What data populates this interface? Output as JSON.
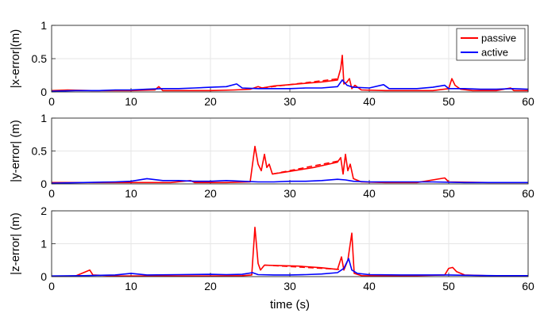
{
  "colors": {
    "passive": "#ff0000",
    "active": "#0000ff",
    "grid": "#e6e6e6",
    "axis": "#262626"
  },
  "chart_data": [
    {
      "type": "line",
      "ylabel": "|x-error|(m)",
      "xlabel": "",
      "xlim": [
        0,
        60
      ],
      "ylim": [
        0,
        1
      ],
      "xticks": [
        "0",
        "10",
        "20",
        "30",
        "40",
        "50",
        "60"
      ],
      "yticks": [
        "0",
        "0.5",
        "1"
      ],
      "grid": true,
      "legend": {
        "position": "top-right",
        "entries": [
          "passive",
          "active"
        ]
      },
      "series": [
        {
          "name": "passive",
          "color": "#ff0000",
          "points": [
            [
              0,
              0.02
            ],
            [
              2,
              0.03
            ],
            [
              5,
              0.02
            ],
            [
              8,
              0.02
            ],
            [
              10,
              0.02
            ],
            [
              13,
              0.03
            ],
            [
              13.5,
              0.08
            ],
            [
              14,
              0.02
            ],
            [
              17,
              0.02
            ],
            [
              20,
              0.02
            ],
            [
              23,
              0.03
            ],
            [
              25,
              0.04
            ],
            [
              26,
              0.08
            ],
            [
              26.5,
              0.06
            ],
            [
              28,
              0.09
            ],
            [
              30,
              0.11
            ],
            [
              32,
              0.13
            ],
            [
              34,
              0.15
            ],
            [
              36,
              0.18
            ],
            [
              36.4,
              0.35
            ],
            [
              36.6,
              0.55
            ],
            [
              36.8,
              0.12
            ],
            [
              37.2,
              0.15
            ],
            [
              37.5,
              0.2
            ],
            [
              37.8,
              0.05
            ],
            [
              38.2,
              0.1
            ],
            [
              39,
              0.03
            ],
            [
              42,
              0.02
            ],
            [
              45,
              0.02
            ],
            [
              48,
              0.02
            ],
            [
              50,
              0.05
            ],
            [
              50.4,
              0.2
            ],
            [
              50.8,
              0.1
            ],
            [
              51.5,
              0.04
            ],
            [
              53,
              0.02
            ],
            [
              56,
              0.02
            ],
            [
              57.8,
              0.06
            ],
            [
              58.2,
              0.02
            ],
            [
              60,
              0.02
            ]
          ],
          "dashed_segment": [
            [
              26.5,
              0.06
            ],
            [
              36.2,
              0.2
            ]
          ]
        },
        {
          "name": "active",
          "color": "#0000ff",
          "points": [
            [
              0,
              0.01
            ],
            [
              3,
              0.02
            ],
            [
              6,
              0.02
            ],
            [
              8,
              0.03
            ],
            [
              10,
              0.03
            ],
            [
              12,
              0.04
            ],
            [
              14,
              0.05
            ],
            [
              16,
              0.05
            ],
            [
              18,
              0.06
            ],
            [
              20,
              0.07
            ],
            [
              22,
              0.08
            ],
            [
              23.3,
              0.12
            ],
            [
              24,
              0.06
            ],
            [
              26,
              0.05
            ],
            [
              28,
              0.05
            ],
            [
              30,
              0.05
            ],
            [
              32,
              0.06
            ],
            [
              34,
              0.06
            ],
            [
              36,
              0.08
            ],
            [
              36.6,
              0.18
            ],
            [
              37.2,
              0.1
            ],
            [
              38,
              0.07
            ],
            [
              40,
              0.06
            ],
            [
              41.8,
              0.11
            ],
            [
              42.5,
              0.05
            ],
            [
              44,
              0.05
            ],
            [
              46,
              0.05
            ],
            [
              48,
              0.07
            ],
            [
              49.5,
              0.1
            ],
            [
              50,
              0.05
            ],
            [
              52,
              0.05
            ],
            [
              54,
              0.04
            ],
            [
              56,
              0.04
            ],
            [
              58,
              0.05
            ],
            [
              60,
              0.04
            ]
          ]
        }
      ]
    },
    {
      "type": "line",
      "ylabel": "|y-error| (m)",
      "xlabel": "",
      "xlim": [
        0,
        60
      ],
      "ylim": [
        0,
        1
      ],
      "xticks": [
        "0",
        "10",
        "20",
        "30",
        "40",
        "50",
        "60"
      ],
      "yticks": [
        "0",
        "0.5",
        "1"
      ],
      "grid": true,
      "series": [
        {
          "name": "passive",
          "color": "#ff0000",
          "points": [
            [
              0,
              0.02
            ],
            [
              5,
              0.02
            ],
            [
              10,
              0.02
            ],
            [
              15,
              0.02
            ],
            [
              17.5,
              0.05
            ],
            [
              18,
              0.02
            ],
            [
              22,
              0.02
            ],
            [
              25,
              0.03
            ],
            [
              25.6,
              0.57
            ],
            [
              26,
              0.3
            ],
            [
              26.4,
              0.2
            ],
            [
              26.8,
              0.45
            ],
            [
              27.1,
              0.25
            ],
            [
              27.4,
              0.3
            ],
            [
              27.8,
              0.15
            ],
            [
              30,
              0.19
            ],
            [
              33,
              0.25
            ],
            [
              36,
              0.33
            ],
            [
              36.4,
              0.4
            ],
            [
              36.7,
              0.15
            ],
            [
              37,
              0.45
            ],
            [
              37.3,
              0.2
            ],
            [
              37.6,
              0.3
            ],
            [
              38,
              0.08
            ],
            [
              39,
              0.03
            ],
            [
              42,
              0.02
            ],
            [
              46,
              0.02
            ],
            [
              49.5,
              0.09
            ],
            [
              50,
              0.03
            ],
            [
              55,
              0.02
            ],
            [
              60,
              0.02
            ]
          ],
          "dashed_segment": [
            [
              27.8,
              0.15
            ],
            [
              36.2,
              0.35
            ]
          ]
        },
        {
          "name": "active",
          "color": "#0000ff",
          "points": [
            [
              0,
              0.01
            ],
            [
              4,
              0.02
            ],
            [
              8,
              0.03
            ],
            [
              10,
              0.04
            ],
            [
              12,
              0.08
            ],
            [
              14,
              0.05
            ],
            [
              16,
              0.05
            ],
            [
              18,
              0.04
            ],
            [
              20,
              0.04
            ],
            [
              22,
              0.05
            ],
            [
              24,
              0.04
            ],
            [
              26,
              0.03
            ],
            [
              28,
              0.03
            ],
            [
              30,
              0.04
            ],
            [
              32,
              0.04
            ],
            [
              34,
              0.05
            ],
            [
              36,
              0.07
            ],
            [
              37,
              0.06
            ],
            [
              38,
              0.04
            ],
            [
              40,
              0.03
            ],
            [
              44,
              0.03
            ],
            [
              48,
              0.03
            ],
            [
              52,
              0.02
            ],
            [
              56,
              0.02
            ],
            [
              60,
              0.02
            ]
          ]
        }
      ]
    },
    {
      "type": "line",
      "ylabel": "|z-error| (m)",
      "xlabel": "time (s)",
      "xlim": [
        0,
        60
      ],
      "ylim": [
        0,
        2
      ],
      "xticks": [
        "0",
        "10",
        "20",
        "30",
        "40",
        "50",
        "60"
      ],
      "yticks": [
        "0",
        "1",
        "2"
      ],
      "grid": true,
      "series": [
        {
          "name": "passive",
          "color": "#ff0000",
          "points": [
            [
              0,
              0.01
            ],
            [
              3,
              0.02
            ],
            [
              4.8,
              0.2
            ],
            [
              5.2,
              0.05
            ],
            [
              8,
              0.02
            ],
            [
              12,
              0.02
            ],
            [
              16,
              0.02
            ],
            [
              20,
              0.02
            ],
            [
              24,
              0.03
            ],
            [
              25.2,
              0.05
            ],
            [
              25.6,
              1.5
            ],
            [
              26,
              0.4
            ],
            [
              26.3,
              0.2
            ],
            [
              26.8,
              0.35
            ],
            [
              28,
              0.34
            ],
            [
              31,
              0.32
            ],
            [
              34,
              0.27
            ],
            [
              36,
              0.22
            ],
            [
              36.5,
              0.6
            ],
            [
              36.8,
              0.2
            ],
            [
              37.3,
              0.5
            ],
            [
              37.8,
              1.32
            ],
            [
              38.1,
              0.1
            ],
            [
              39,
              0.03
            ],
            [
              44,
              0.02
            ],
            [
              49.5,
              0.05
            ],
            [
              50,
              0.25
            ],
            [
              50.5,
              0.28
            ],
            [
              51,
              0.15
            ],
            [
              52,
              0.05
            ],
            [
              56,
              0.02
            ],
            [
              60,
              0.02
            ]
          ],
          "dashed_segment": [
            [
              26.8,
              0.35
            ],
            [
              36.2,
              0.22
            ]
          ]
        },
        {
          "name": "active",
          "color": "#0000ff",
          "points": [
            [
              0,
              0.02
            ],
            [
              4,
              0.03
            ],
            [
              8,
              0.05
            ],
            [
              10,
              0.1
            ],
            [
              12,
              0.05
            ],
            [
              16,
              0.06
            ],
            [
              20,
              0.07
            ],
            [
              22,
              0.06
            ],
            [
              24,
              0.07
            ],
            [
              25.3,
              0.12
            ],
            [
              26,
              0.06
            ],
            [
              28,
              0.05
            ],
            [
              30,
              0.05
            ],
            [
              32,
              0.06
            ],
            [
              34,
              0.08
            ],
            [
              36,
              0.12
            ],
            [
              36.8,
              0.25
            ],
            [
              37.4,
              0.55
            ],
            [
              37.8,
              0.2
            ],
            [
              38.5,
              0.1
            ],
            [
              40,
              0.06
            ],
            [
              44,
              0.05
            ],
            [
              48,
              0.05
            ],
            [
              50,
              0.05
            ],
            [
              52,
              0.04
            ],
            [
              56,
              0.03
            ],
            [
              60,
              0.03
            ]
          ]
        }
      ]
    }
  ]
}
